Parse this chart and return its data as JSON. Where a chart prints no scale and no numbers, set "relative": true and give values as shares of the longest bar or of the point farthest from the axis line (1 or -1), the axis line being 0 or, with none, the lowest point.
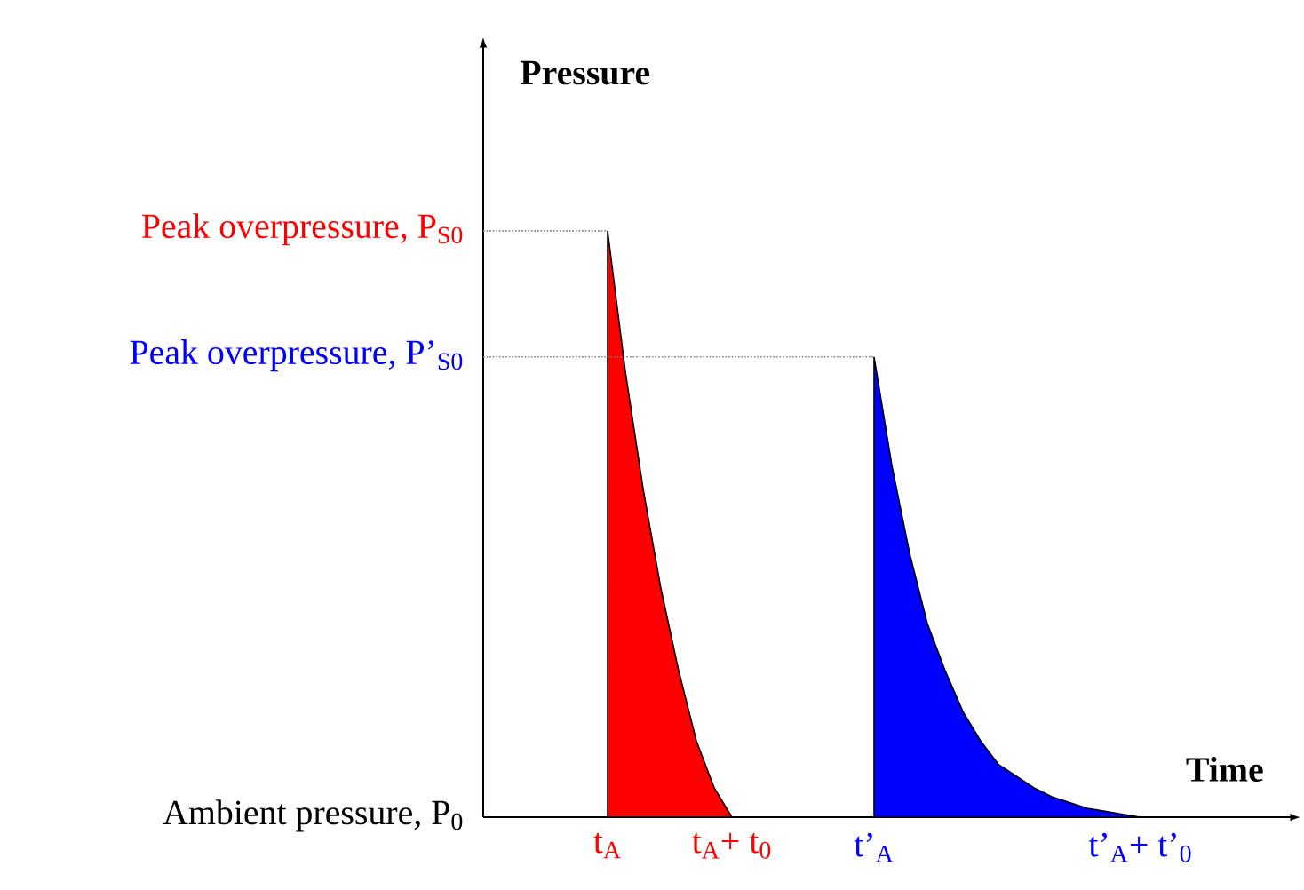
{
  "chart_data": {
    "type": "area",
    "xlabel": "Time",
    "ylabel": "Pressure",
    "relative": true,
    "categories": [
      null,
      null,
      null,
      null,
      null,
      null,
      null,
      "t$_{A}$",
      null,
      null,
      null,
      null,
      null,
      null,
      "t$_{A}$+ t$_{0}$",
      null,
      null,
      null,
      null,
      null,
      null,
      null,
      "t’$_{A}$",
      null,
      null,
      null,
      null,
      null,
      null,
      null,
      null,
      null,
      null,
      null,
      null,
      null,
      null,
      "t’$_{A}$+ t’$_{0}$",
      null,
      null,
      null,
      null,
      null,
      null,
      null,
      null
    ],
    "series": [
      {
        "color": "#ff0000",
        "values": [
          null,
          null,
          null,
          null,
          null,
          null,
          null,
          1,
          0.76,
          0.56,
          0.39,
          0.25,
          0.13,
          0.05,
          0,
          null,
          null,
          null,
          null,
          null,
          null,
          null,
          null,
          null,
          null,
          null,
          null,
          null,
          null,
          null,
          null,
          null,
          null,
          null,
          null,
          null,
          null,
          null,
          null,
          null,
          null,
          null,
          null,
          null,
          null,
          null
        ]
      },
      {
        "color": "#0000ff",
        "values": [
          null,
          null,
          null,
          null,
          null,
          null,
          null,
          null,
          null,
          null,
          null,
          null,
          null,
          null,
          null,
          null,
          null,
          null,
          null,
          null,
          null,
          null,
          0.785,
          0.6,
          0.45,
          0.33,
          0.25,
          0.18,
          0.13,
          0.09,
          0.07,
          0.05,
          0.035,
          0.025,
          0.015,
          0.01,
          0.005,
          0,
          null,
          null,
          null,
          null,
          null,
          null,
          null,
          null
        ]
      }
    ],
    "ref_lines": [
      {
        "axis": "y",
        "value": 0,
        "line_style": "solid",
        "color": "#000000",
        "label": "Ambient pressure, P$_{0}$"
      },
      {
        "axis": "y",
        "value": 1,
        "line_style": "dotted",
        "color": "#808080",
        "label": "Peak overpressure, P$_{S0}$"
      },
      {
        "axis": "y",
        "value": 0.785,
        "line_style": "dotted",
        "color": "#808080",
        "label": "Peak overpressure, P’$_{S0}$"
      }
    ]
  }
}
